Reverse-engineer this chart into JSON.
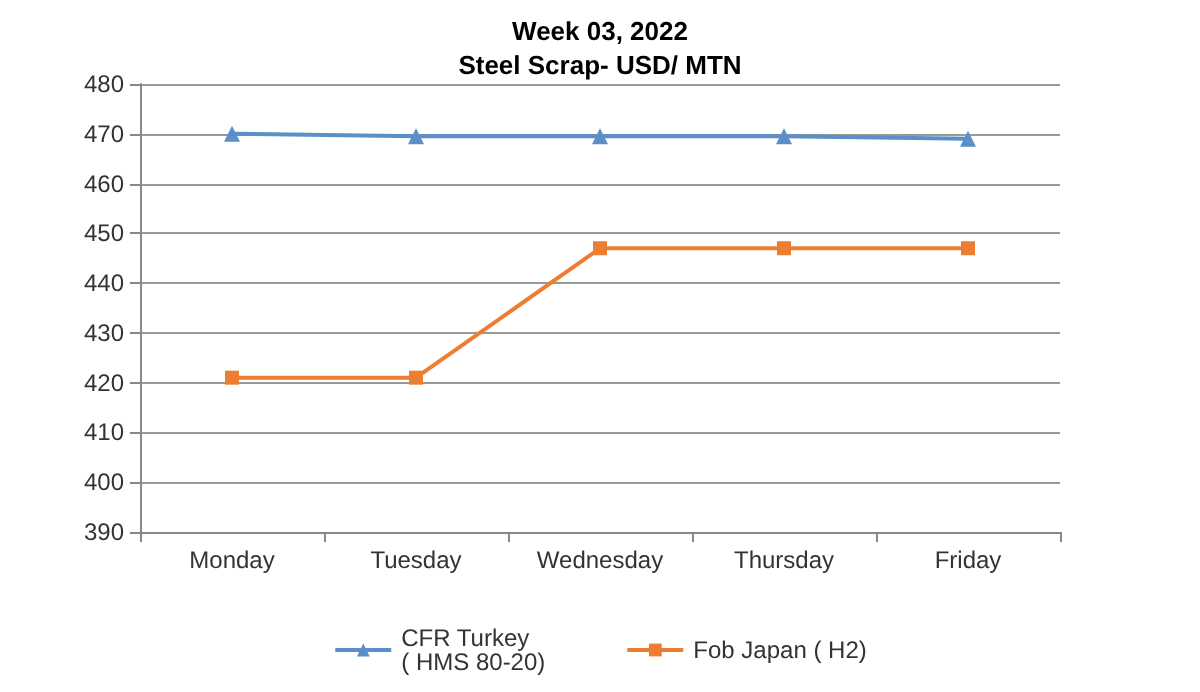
{
  "chart_data": {
    "type": "line",
    "title": "Week 03, 2022",
    "subtitle": "Steel Scrap- USD/ MTN",
    "categories": [
      "Monday",
      "Tuesday",
      "Wednesday",
      "Thursday",
      "Friday"
    ],
    "series": [
      {
        "name": "CFR Turkey\n( HMS 80-20)",
        "color": "#5b8fc9",
        "marker": "triangle",
        "values": [
          470,
          469.5,
          469.5,
          469.5,
          469
        ]
      },
      {
        "name": "Fob Japan ( H2)",
        "color": "#ed7d31",
        "marker": "square",
        "values": [
          421,
          421,
          447,
          447,
          447
        ]
      }
    ],
    "ylim": [
      390,
      480
    ],
    "yticks": [
      390,
      400,
      410,
      420,
      430,
      440,
      450,
      460,
      470,
      480
    ],
    "grid": "y",
    "legend": "bottom"
  }
}
